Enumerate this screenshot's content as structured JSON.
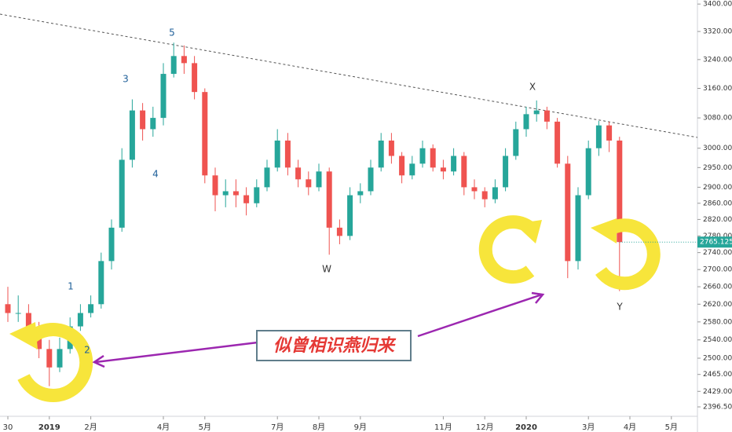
{
  "chart_data": {
    "type": "candlestick",
    "log_scale": true,
    "up_color": "#26a69a",
    "down_color": "#ef5350",
    "ylim": [
      2377,
      3412
    ],
    "yticks": [
      {
        "value": 3400,
        "label": "3400.000"
      },
      {
        "value": 3320,
        "label": "3320.000"
      },
      {
        "value": 3240,
        "label": "3240.000"
      },
      {
        "value": 3160,
        "label": "3160.000"
      },
      {
        "value": 3080,
        "label": "3080.000"
      },
      {
        "value": 3000,
        "label": "3000.000"
      },
      {
        "value": 2950,
        "label": "2950.000"
      },
      {
        "value": 2900,
        "label": "2900.000"
      },
      {
        "value": 2860,
        "label": "2860.000"
      },
      {
        "value": 2820,
        "label": "2820.000"
      },
      {
        "value": 2780,
        "label": "2780.000"
      },
      {
        "value": 2740,
        "label": "2740.000"
      },
      {
        "value": 2700,
        "label": "2700.000"
      },
      {
        "value": 2660,
        "label": "2660.000"
      },
      {
        "value": 2620,
        "label": "2620.000"
      },
      {
        "value": 2580,
        "label": "2580.000"
      },
      {
        "value": 2540,
        "label": "2540.000"
      },
      {
        "value": 2500,
        "label": "2500.000"
      },
      {
        "value": 2465,
        "label": "2465.000"
      },
      {
        "value": 2429,
        "label": "2429.000"
      },
      {
        "value": 2396.5,
        "label": "2396.500"
      }
    ],
    "categories": [
      "30",
      null,
      null,
      null,
      "2019",
      null,
      null,
      null,
      "2月",
      null,
      null,
      null,
      null,
      null,
      null,
      "4月",
      null,
      null,
      null,
      "5月",
      null,
      null,
      null,
      null,
      null,
      null,
      "7月",
      null,
      null,
      null,
      "8月",
      null,
      null,
      null,
      "9月",
      null,
      null,
      null,
      null,
      null,
      null,
      null,
      "11月",
      null,
      null,
      null,
      "12月",
      null,
      null,
      null,
      "2020",
      null,
      null,
      null,
      null,
      null,
      "3月",
      null,
      null,
      null,
      "4月",
      null,
      null,
      null,
      "5月"
    ],
    "open": [
      2620,
      2600,
      2600,
      2560,
      2520,
      2480,
      2520,
      2570,
      2600,
      2620,
      2720,
      2800,
      2970,
      3100,
      3050,
      3080,
      3200,
      3250,
      3230,
      3150,
      2930,
      2880,
      2890,
      2880,
      2860,
      2900,
      2950,
      3020,
      2950,
      2920,
      2900,
      2940,
      2800,
      2780,
      2880,
      2890,
      2950,
      3020,
      2980,
      2930,
      2960,
      3000,
      2950,
      2940,
      2980,
      2900,
      2890,
      2870,
      2900,
      2980,
      3050,
      3090,
      3100,
      3070,
      2960,
      2720,
      2880,
      3000,
      3060,
      3020,
      null,
      null,
      null,
      null,
      null
    ],
    "high": [
      2660,
      2640,
      2620,
      2580,
      2540,
      2545,
      2590,
      2620,
      2640,
      2740,
      2820,
      3000,
      3130,
      3120,
      3110,
      3230,
      3288,
      3280,
      3250,
      3160,
      2950,
      2920,
      2920,
      2900,
      2920,
      2970,
      3050,
      3040,
      2970,
      2940,
      2960,
      2950,
      2820,
      2900,
      2910,
      2970,
      3040,
      3040,
      2990,
      2980,
      3020,
      3010,
      2970,
      3000,
      2990,
      2920,
      2900,
      2920,
      3000,
      3070,
      3110,
      3127,
      3110,
      3080,
      2980,
      2900,
      3020,
      3072,
      3070,
      3030,
      null,
      null,
      null,
      null,
      null
    ],
    "low": [
      2580,
      2580,
      2540,
      2500,
      2440,
      2470,
      2510,
      2560,
      2590,
      2610,
      2700,
      2790,
      2950,
      3020,
      3030,
      3060,
      3190,
      3200,
      3130,
      2910,
      2840,
      2850,
      2850,
      2830,
      2850,
      2890,
      2940,
      2930,
      2900,
      2880,
      2890,
      2735,
      2760,
      2770,
      2860,
      2880,
      2940,
      2960,
      2910,
      2920,
      2950,
      2940,
      2920,
      2930,
      2880,
      2870,
      2850,
      2860,
      2890,
      2970,
      3030,
      3070,
      3050,
      2950,
      2680,
      2700,
      2870,
      2980,
      2990,
      2650,
      null,
      null,
      null,
      null,
      null
    ],
    "close": [
      2600,
      2600,
      2560,
      2520,
      2480,
      2520,
      2570,
      2600,
      2620,
      2720,
      2800,
      2970,
      3100,
      3050,
      3080,
      3200,
      3250,
      3230,
      3150,
      2930,
      2880,
      2890,
      2880,
      2860,
      2900,
      2950,
      3020,
      2950,
      2920,
      2900,
      2940,
      2800,
      2780,
      2880,
      2890,
      2950,
      3020,
      2980,
      2930,
      2960,
      3000,
      2950,
      2940,
      2980,
      2900,
      2890,
      2870,
      2900,
      2980,
      3050,
      3090,
      3100,
      3070,
      2960,
      2720,
      2880,
      3000,
      3060,
      3020,
      {
        "value": 2765.125,
        "label": "2765.125"
      },
      null,
      null,
      null,
      null,
      null
    ],
    "wave_labels": [
      "1",
      "2",
      "3",
      "4",
      "5",
      "W",
      "X",
      "Y"
    ],
    "callout": "似曾相识燕归来"
  }
}
